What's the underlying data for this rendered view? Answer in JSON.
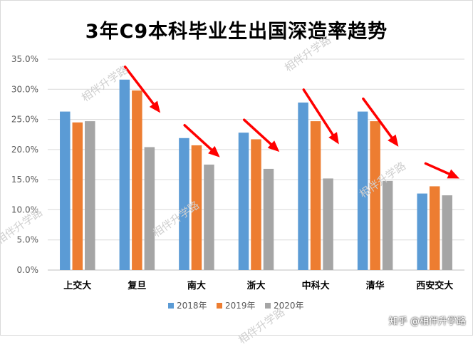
{
  "chart_data": {
    "type": "bar",
    "title": "3年C9本科毕业生出国深造率趋势",
    "categories": [
      "上交大",
      "复旦",
      "南大",
      "浙大",
      "中科大",
      "清华",
      "西安交大"
    ],
    "series": [
      {
        "name": "2018年",
        "color": "#5b9bd5",
        "values": [
          26.3,
          31.6,
          21.9,
          22.8,
          27.8,
          26.3,
          12.7
        ]
      },
      {
        "name": "2019年",
        "color": "#ed7d31",
        "values": [
          24.5,
          29.8,
          20.7,
          21.7,
          24.7,
          24.7,
          13.9
        ]
      },
      {
        "name": "2020年",
        "color": "#a5a5a5",
        "values": [
          24.7,
          20.4,
          17.5,
          16.8,
          15.2,
          14.8,
          12.4
        ]
      }
    ],
    "yticks": [
      "0.0%",
      "5.0%",
      "10.0%",
      "15.0%",
      "20.0%",
      "25.0%",
      "30.0%",
      "35.0%"
    ],
    "ylim": [
      0,
      35
    ],
    "grid": true,
    "legend": "bottom",
    "annotations": "red arrows pointing downward over 复旦, 南大, 浙大, 中科大, 清华, 西安交大"
  },
  "watermark": "相伴升学路",
  "credit": "知乎 @相伴升学路"
}
